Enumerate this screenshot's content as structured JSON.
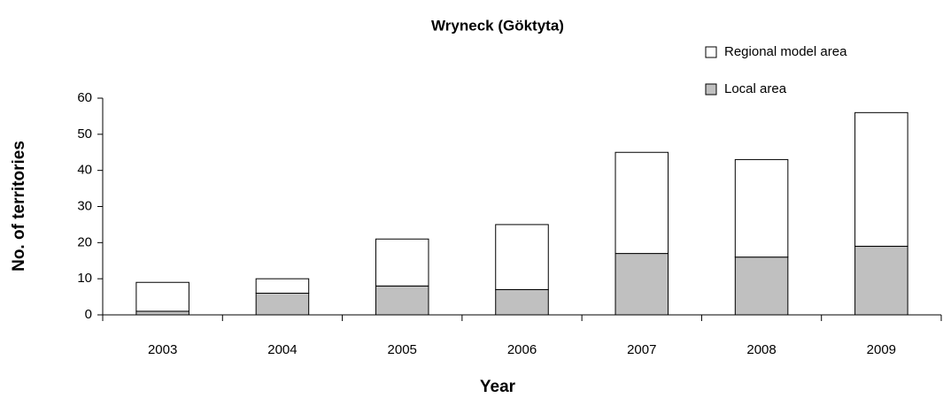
{
  "chart_data": {
    "type": "stacked_bar",
    "title": "Wryneck (Göktyta)",
    "xlabel": "Year",
    "ylabel": "No. of territories",
    "categories": [
      "2003",
      "2004",
      "2005",
      "2006",
      "2007",
      "2008",
      "2009"
    ],
    "series": [
      {
        "name": "Local area",
        "color": "#c0c0c0",
        "values": [
          1,
          6,
          8,
          7,
          17,
          16,
          19
        ]
      },
      {
        "name": "Regional model area",
        "color": "#ffffff",
        "values": [
          8,
          4,
          13,
          18,
          28,
          27,
          37
        ]
      }
    ],
    "ylim": [
      0,
      60
    ],
    "yticks": [
      0,
      10,
      20,
      30,
      40,
      50,
      60
    ],
    "legend": "upper right"
  }
}
